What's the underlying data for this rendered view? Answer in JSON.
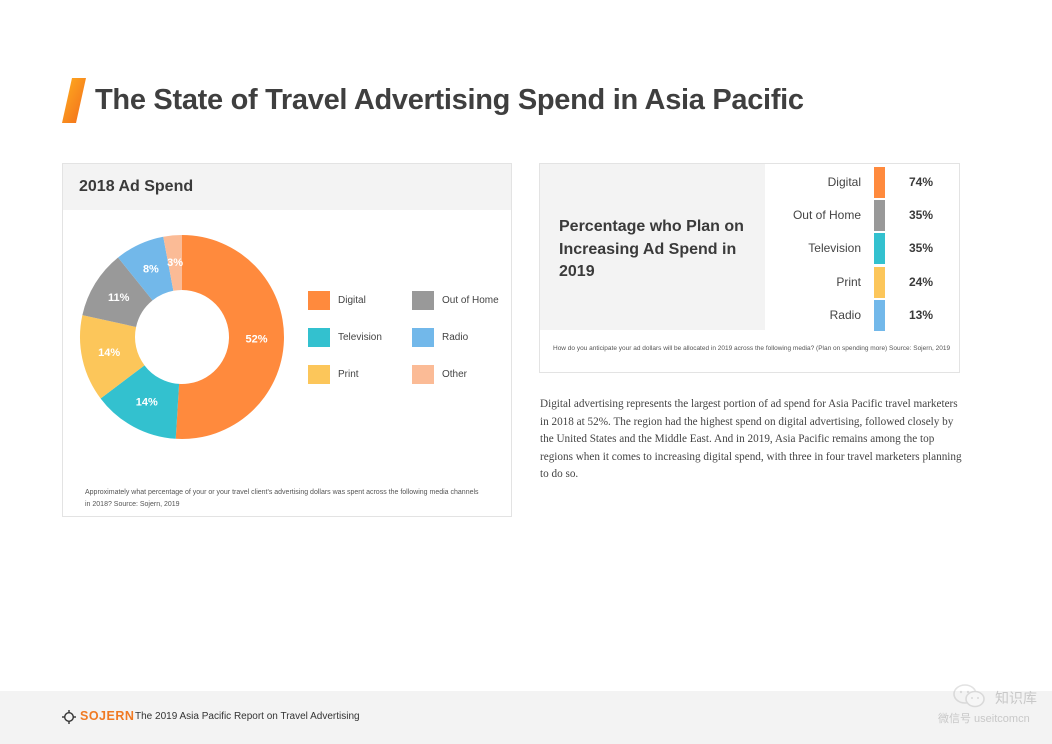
{
  "header": {
    "title": "The State of Travel Advertising Spend in Asia Pacific"
  },
  "colors": {
    "accent": "#f7941d",
    "digital": "#ff8a3d",
    "out_of_home": "#999999",
    "television": "#33c1cf",
    "radio": "#72b8ea",
    "print": "#fcc65a",
    "other": "#fbbb96"
  },
  "left_panel": {
    "title": "2018 Ad Spend",
    "note": "Approximately what percentage of your or your travel client's advertising dollars was spent across the following media channels in 2018? Source: Sojern, 2019"
  },
  "right_panel": {
    "title": "Percentage who Plan on Increasing Ad Spend in 2019",
    "note": "How do you anticipate your ad dollars will be allocated in 2019 across the following media? (Plan on spending more) Source: Sojern, 2019"
  },
  "chart_data": [
    {
      "type": "pie",
      "title": "2018 Ad Spend",
      "slices": [
        {
          "label": "Digital",
          "value": 52,
          "display": "52%",
          "color": "#ff8a3d"
        },
        {
          "label": "Television",
          "value": 14,
          "display": "14%",
          "color": "#33c1cf"
        },
        {
          "label": "Print",
          "value": 14,
          "display": "14%",
          "color": "#fcc65a"
        },
        {
          "label": "Out of Home",
          "value": 11,
          "display": "11%",
          "color": "#999999"
        },
        {
          "label": "Radio",
          "value": 8,
          "display": "8%",
          "color": "#72b8ea"
        },
        {
          "label": "Other",
          "value": 3,
          "display": "3%",
          "color": "#fbbb96"
        }
      ],
      "legend": [
        {
          "label": "Digital",
          "color": "#ff8a3d"
        },
        {
          "label": "Out of Home",
          "color": "#999999"
        },
        {
          "label": "Television",
          "color": "#33c1cf"
        },
        {
          "label": "Radio",
          "color": "#72b8ea"
        },
        {
          "label": "Print",
          "color": "#fcc65a"
        },
        {
          "label": "Other",
          "color": "#fbbb96"
        }
      ]
    },
    {
      "type": "table",
      "title": "Percentage who Plan on Increasing Ad Spend in 2019",
      "rows": [
        {
          "label": "Digital",
          "value": 74,
          "display": "74%",
          "color": "#ff8a3d"
        },
        {
          "label": "Out of Home",
          "value": 35,
          "display": "35%",
          "color": "#999999"
        },
        {
          "label": "Television",
          "value": 35,
          "display": "35%",
          "color": "#33c1cf"
        },
        {
          "label": "Print",
          "value": 24,
          "display": "24%",
          "color": "#fcc65a"
        },
        {
          "label": "Radio",
          "value": 13,
          "display": "13%",
          "color": "#72b8ea"
        }
      ]
    }
  ],
  "body_text": "Digital advertising represents the largest portion of ad spend for Asia Pacific travel marketers in 2018 at 52%. The region had the highest spend on digital advertising, followed closely by the United States and the Middle East. And in 2019, Asia Pacific remains among the top regions when it comes to increasing digital spend, with three in four travel marketers planning to do so.",
  "footer": {
    "brand": "SOJERN",
    "text": "The 2019 Asia Pacific Report on Travel Advertising"
  },
  "watermark": {
    "line1": "知识库",
    "line2": "微信号 useitcomcn"
  }
}
